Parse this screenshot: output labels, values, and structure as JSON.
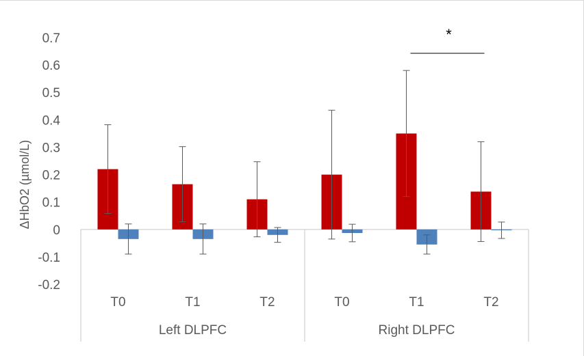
{
  "chart_data": {
    "type": "bar",
    "title": "",
    "ylabel": "ΔHbO2 (µmol/L)",
    "xlabel": "",
    "ylim": [
      -0.2,
      0.7
    ],
    "yticks": [
      0.7,
      0.6,
      0.5,
      0.4,
      0.3,
      0.2,
      0.1,
      0,
      -0.1,
      -0.2
    ],
    "ytick_labels": [
      "0.7",
      "0.6",
      "0.5",
      "0.4",
      "0.3",
      "0.2",
      "0.1",
      "0",
      "-0.1",
      "-0.2"
    ],
    "categories": [
      "T0",
      "T1",
      "T2",
      "T0",
      "T1",
      "T2"
    ],
    "groups": [
      {
        "label": "Left DLPFC",
        "categories": [
          "T0",
          "T1",
          "T2"
        ]
      },
      {
        "label": "Right DLPFC",
        "categories": [
          "T0",
          "T1",
          "T2"
        ]
      }
    ],
    "series": [
      {
        "color": "#c00000",
        "values": [
          0.22,
          0.165,
          0.11,
          0.2,
          0.35,
          0.138
        ],
        "error": [
          0.162,
          0.137,
          0.137,
          0.235,
          0.23,
          0.182
        ]
      },
      {
        "color": "#4f81bd",
        "values": [
          -0.035,
          -0.035,
          -0.02,
          -0.013,
          -0.055,
          -0.003
        ],
        "error": [
          0.055,
          0.055,
          0.027,
          0.032,
          0.035,
          0.03
        ]
      }
    ],
    "significance": {
      "text": "*",
      "between": [
        4,
        5
      ]
    },
    "grid": false,
    "legend": "none"
  }
}
